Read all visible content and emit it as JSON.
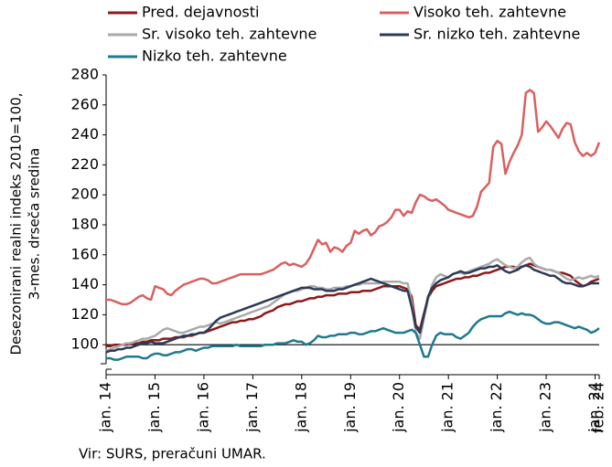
{
  "chart_data": {
    "type": "line",
    "y_label": [
      "Desezonirani realni indeks 2010=100,",
      "3-mes. drseča sredina"
    ],
    "source": "Vir: SURS, preračuni UMAR.",
    "categories": [
      "jan. 14",
      null,
      null,
      null,
      null,
      null,
      null,
      null,
      null,
      null,
      null,
      null,
      "jan. 15",
      null,
      null,
      null,
      null,
      null,
      null,
      null,
      null,
      null,
      null,
      null,
      "jan. 16",
      null,
      null,
      null,
      null,
      null,
      null,
      null,
      null,
      null,
      null,
      null,
      "jan. 17",
      null,
      null,
      null,
      null,
      null,
      null,
      null,
      null,
      null,
      null,
      null,
      "jan. 18",
      null,
      null,
      null,
      null,
      null,
      null,
      null,
      null,
      null,
      null,
      null,
      "jan. 19",
      null,
      null,
      null,
      null,
      null,
      null,
      null,
      null,
      null,
      null,
      null,
      "jan. 20",
      null,
      null,
      null,
      null,
      null,
      null,
      null,
      null,
      null,
      null,
      null,
      "jan. 21",
      null,
      null,
      null,
      null,
      null,
      null,
      null,
      null,
      null,
      null,
      null,
      "jan. 22",
      null,
      null,
      null,
      null,
      null,
      null,
      null,
      null,
      null,
      null,
      null,
      "jan. 23",
      null,
      null,
      null,
      null,
      null,
      null,
      null,
      null,
      null,
      null,
      null,
      "jan. 24",
      "feb. 24"
    ],
    "series": [
      {
        "name": "Pred. dejavnosti",
        "color": "#8b1a1a",
        "values": [
          99,
          99,
          100,
          100,
          100,
          100,
          101,
          101,
          101,
          102,
          102,
          103,
          103,
          103,
          104,
          104,
          104,
          105,
          105,
          105,
          106,
          106,
          107,
          108,
          108,
          109,
          110,
          111,
          112,
          113,
          114,
          115,
          115,
          116,
          116,
          117,
          117,
          118,
          119,
          121,
          122,
          123,
          125,
          126,
          127,
          127,
          128,
          129,
          129,
          130,
          131,
          131,
          132,
          132,
          133,
          133,
          133,
          134,
          134,
          134,
          135,
          135,
          135,
          136,
          136,
          136,
          137,
          138,
          139,
          139,
          139,
          139,
          139,
          138,
          137,
          132,
          113,
          110,
          121,
          131,
          136,
          139,
          140,
          141,
          142,
          143,
          144,
          144,
          145,
          145,
          146,
          146,
          147,
          148,
          148,
          149,
          150,
          151,
          152,
          152,
          152,
          151,
          152,
          153,
          154,
          153,
          152,
          151,
          150,
          150,
          149,
          148,
          148,
          147,
          146,
          143,
          141,
          139,
          140,
          142,
          143,
          144
        ]
      },
      {
        "name": "Visoko teh. zahtevne",
        "color": "#d9605f",
        "values": [
          130,
          130,
          129,
          128,
          127,
          127,
          128,
          130,
          132,
          133,
          131,
          130,
          139,
          138,
          137,
          134,
          133,
          136,
          138,
          140,
          141,
          142,
          143,
          144,
          144,
          143,
          141,
          141,
          142,
          143,
          144,
          145,
          146,
          147,
          147,
          147,
          147,
          147,
          147,
          148,
          149,
          150,
          152,
          154,
          155,
          153,
          154,
          153,
          152,
          154,
          158,
          164,
          170,
          167,
          168,
          162,
          165,
          164,
          162,
          166,
          168,
          176,
          174,
          176,
          177,
          173,
          175,
          179,
          180,
          182,
          185,
          190,
          190,
          186,
          189,
          188,
          195,
          200,
          199,
          197,
          196,
          197,
          195,
          193,
          190,
          189,
          188,
          187,
          186,
          185,
          186,
          192,
          202,
          205,
          208,
          232,
          236,
          234,
          214,
          222,
          228,
          233,
          240,
          268,
          270,
          268,
          242,
          245,
          249,
          246,
          242,
          238,
          244,
          248,
          247,
          235,
          229,
          226,
          228,
          226,
          228,
          235
        ]
      },
      {
        "name": "Sr. visoko teh. zahtevne",
        "color": "#aaaaaa",
        "values": [
          96,
          97,
          98,
          99,
          100,
          101,
          101,
          102,
          103,
          104,
          104,
          105,
          106,
          108,
          110,
          111,
          110,
          109,
          108,
          108,
          109,
          110,
          111,
          112,
          112,
          113,
          114,
          115,
          114,
          115,
          116,
          117,
          118,
          119,
          120,
          121,
          122,
          123,
          124,
          125,
          126,
          128,
          130,
          132,
          134,
          135,
          136,
          136,
          137,
          138,
          139,
          139,
          138,
          138,
          137,
          137,
          138,
          138,
          138,
          139,
          139,
          140,
          140,
          141,
          141,
          141,
          141,
          141,
          142,
          142,
          142,
          142,
          142,
          141,
          141,
          128,
          108,
          104,
          118,
          130,
          140,
          145,
          147,
          146,
          145,
          147,
          148,
          148,
          147,
          149,
          150,
          151,
          152,
          153,
          154,
          156,
          157,
          155,
          153,
          152,
          151,
          152,
          155,
          157,
          158,
          154,
          152,
          151,
          150,
          150,
          149,
          148,
          146,
          144,
          143,
          144,
          145,
          144,
          145,
          146,
          145,
          146
        ]
      },
      {
        "name": "Sr. nizko teh. zahtevne",
        "color": "#2b3a55",
        "values": [
          95,
          96,
          96,
          97,
          97,
          98,
          98,
          99,
          100,
          101,
          101,
          102,
          101,
          101,
          101,
          102,
          103,
          104,
          105,
          106,
          106,
          107,
          107,
          108,
          108,
          110,
          113,
          116,
          118,
          119,
          120,
          121,
          122,
          123,
          124,
          125,
          126,
          127,
          128,
          129,
          130,
          131,
          132,
          133,
          134,
          135,
          136,
          137,
          138,
          138,
          138,
          137,
          137,
          137,
          136,
          136,
          136,
          137,
          137,
          138,
          139,
          140,
          141,
          142,
          143,
          144,
          143,
          142,
          141,
          140,
          139,
          138,
          137,
          136,
          136,
          125,
          112,
          108,
          120,
          132,
          138,
          141,
          143,
          144,
          145,
          147,
          148,
          149,
          148,
          148,
          149,
          150,
          151,
          151,
          152,
          152,
          153,
          151,
          149,
          148,
          149,
          150,
          152,
          153,
          152,
          150,
          149,
          148,
          147,
          146,
          146,
          144,
          142,
          141,
          141,
          140,
          139,
          139,
          140,
          141,
          141,
          141
        ]
      },
      {
        "name": "Nizko teh. zahtevne",
        "color": "#1f7a8c",
        "values": [
          91,
          91,
          90,
          90,
          91,
          92,
          92,
          92,
          92,
          91,
          91,
          93,
          94,
          94,
          93,
          93,
          94,
          95,
          95,
          96,
          97,
          97,
          96,
          97,
          98,
          98,
          99,
          99,
          99,
          99,
          99,
          99,
          100,
          99,
          99,
          99,
          99,
          99,
          99,
          100,
          100,
          100,
          101,
          101,
          101,
          102,
          103,
          102,
          102,
          100,
          101,
          103,
          106,
          105,
          105,
          106,
          106,
          107,
          107,
          107,
          108,
          108,
          107,
          107,
          108,
          109,
          109,
          110,
          111,
          110,
          109,
          108,
          108,
          108,
          109,
          110,
          108,
          100,
          92,
          92,
          100,
          106,
          108,
          107,
          107,
          107,
          105,
          104,
          106,
          108,
          112,
          115,
          117,
          118,
          119,
          119,
          119,
          119,
          121,
          122,
          121,
          120,
          121,
          120,
          120,
          119,
          117,
          115,
          114,
          114,
          115,
          115,
          114,
          113,
          112,
          111,
          112,
          111,
          110,
          108,
          109,
          111
        ]
      }
    ],
    "hline": 100,
    "ylim": [
      80,
      280
    ],
    "yticks": [
      100,
      120,
      140,
      160,
      180,
      200,
      220,
      240,
      260,
      280
    ]
  }
}
